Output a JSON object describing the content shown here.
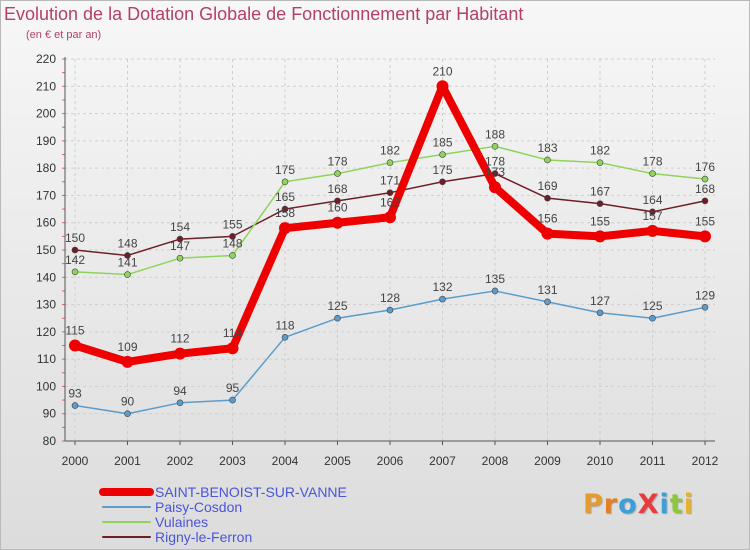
{
  "header": {
    "title": "Evolution de la Dotation Globale de Fonctionnement par Habitant",
    "subtitle": "(en € et par an)"
  },
  "logo": {
    "text": "ProXiti",
    "colors": [
      "#e69b2e",
      "#e67e22",
      "#3d9fd8",
      "#e93b3b",
      "#3d9fd8",
      "#8dc63f",
      "#e6b12e"
    ]
  },
  "chart_data": {
    "type": "line",
    "categories": [
      "2000",
      "2001",
      "2002",
      "2003",
      "2004",
      "2005",
      "2006",
      "2007",
      "2008",
      "2009",
      "2010",
      "2011",
      "2012"
    ],
    "ylim": [
      80,
      220
    ],
    "yticks": [
      80,
      90,
      100,
      110,
      120,
      130,
      140,
      150,
      160,
      170,
      180,
      190,
      200,
      210,
      220
    ],
    "grid": true,
    "legend_placement": "bottom-left",
    "series": [
      {
        "name": "Rigny-le-Ferron",
        "color": "#6e1e26",
        "values": [
          150,
          148,
          154,
          155,
          165,
          168,
          171,
          175,
          178,
          169,
          167,
          164,
          168
        ]
      },
      {
        "name": "Vulaines",
        "color": "#8fd45a",
        "values": [
          142,
          141,
          147,
          148,
          175,
          178,
          182,
          185,
          188,
          183,
          182,
          178,
          176
        ]
      },
      {
        "name": "Paisy-Cosdon",
        "color": "#5a9ccc",
        "values": [
          93,
          90,
          94,
          95,
          118,
          125,
          128,
          132,
          135,
          131,
          127,
          125,
          129
        ]
      },
      {
        "name": "SAINT-BENOIST-SUR-VANNE",
        "color": "#ee0000",
        "values": [
          115,
          109,
          112,
          114,
          158,
          160,
          162,
          210,
          173,
          156,
          155,
          157,
          155
        ]
      }
    ],
    "legend": [
      "SAINT-BENOIST-SUR-VANNE",
      "Paisy-Cosdon",
      "Vulaines",
      "Rigny-le-Ferron"
    ]
  }
}
